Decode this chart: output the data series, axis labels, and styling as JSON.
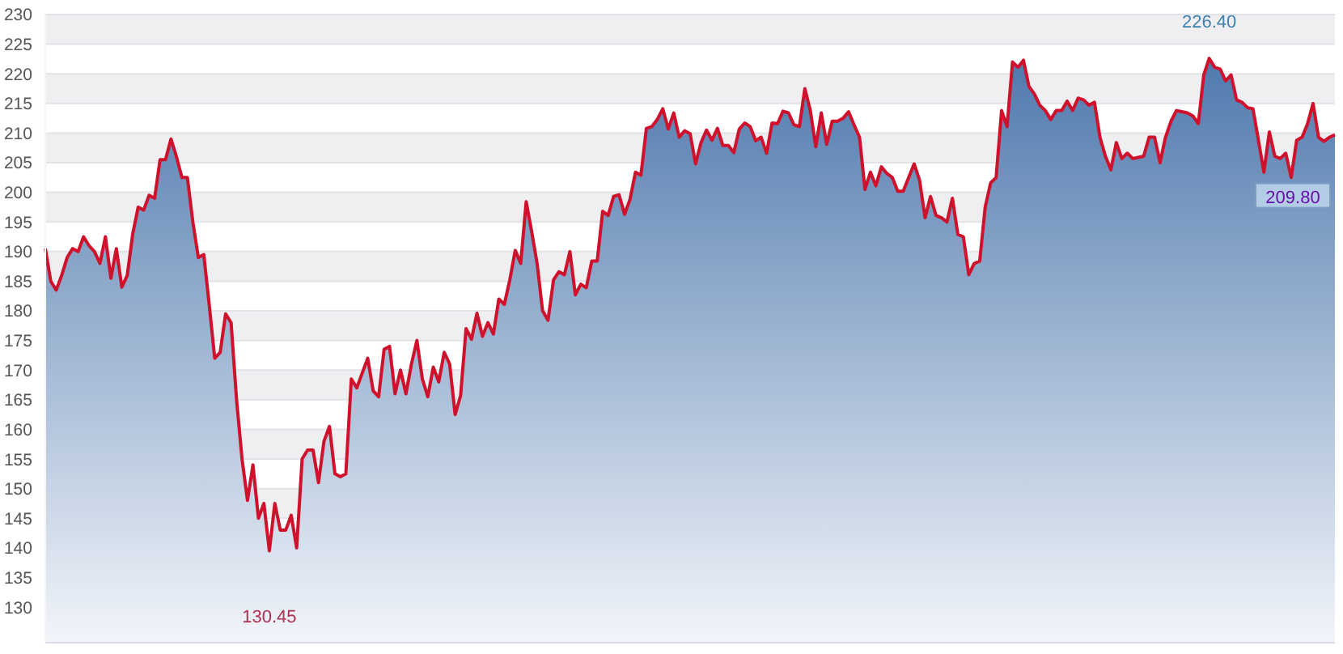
{
  "chart_data": {
    "type": "area",
    "categories": [
      null,
      null,
      null,
      null,
      null,
      null,
      null,
      null,
      null,
      null,
      null,
      null,
      null,
      null,
      null,
      null,
      null,
      null,
      null,
      null,
      null,
      null,
      null,
      null,
      null,
      null,
      null,
      null,
      null,
      null,
      null,
      null,
      null,
      null,
      null,
      null,
      null,
      null,
      null,
      null,
      null,
      null,
      null,
      null,
      null,
      null,
      null,
      null,
      null,
      null,
      null,
      null,
      null,
      null,
      null,
      null,
      null,
      null,
      null,
      null,
      null,
      null,
      null,
      null,
      null,
      null,
      null,
      null,
      null,
      null,
      null,
      null,
      null,
      null,
      null,
      null,
      null,
      null,
      null,
      null,
      null,
      null,
      null,
      null,
      null,
      null,
      null,
      null,
      null,
      null,
      null,
      null,
      null,
      null,
      null,
      null,
      null,
      null,
      null,
      null,
      null,
      null,
      null,
      null,
      null,
      null,
      null,
      null,
      null,
      null,
      null,
      null,
      null,
      null,
      null,
      null,
      null,
      null,
      null,
      null,
      null,
      null,
      null,
      null,
      null,
      null,
      null,
      null,
      null,
      null,
      null,
      null,
      null,
      null,
      null,
      null,
      null,
      null,
      null,
      null,
      null,
      null,
      null,
      null,
      null,
      null,
      null,
      null,
      null,
      null,
      null,
      null,
      null,
      null,
      null,
      null,
      null,
      null,
      null,
      null,
      null,
      null,
      null,
      null,
      null,
      null,
      null,
      null,
      null,
      null,
      null,
      null,
      null,
      null,
      null,
      null,
      null,
      null,
      null,
      null,
      null,
      null,
      null,
      null,
      null,
      null,
      null,
      null,
      null,
      null,
      null,
      null,
      null,
      null,
      null,
      null,
      null,
      null,
      null,
      null,
      null,
      null,
      null,
      null,
      null,
      null,
      null,
      null,
      null,
      null,
      null,
      null,
      null,
      null,
      null,
      null,
      null,
      null,
      null,
      null,
      null,
      null,
      null,
      null,
      null,
      null,
      null,
      null,
      null,
      null,
      null,
      null,
      null,
      null,
      null,
      null,
      null
    ],
    "series": [
      {
        "color": "#d0112b",
        "values": [
          190.5,
          185,
          183.5,
          186,
          189,
          190.5,
          190,
          192.5,
          191,
          190,
          188,
          192.5,
          185.5,
          190.5,
          184,
          186,
          193,
          197.5,
          197,
          199.5,
          199,
          205.5,
          205.5,
          209,
          206,
          202.5,
          202.5,
          195,
          189,
          189.5,
          181,
          172,
          173,
          179.5,
          178,
          165,
          155,
          148,
          154,
          145,
          147.5,
          139.5,
          147.5,
          143,
          143,
          145.5,
          140,
          155,
          156.5,
          156.5,
          151,
          158,
          160.5,
          152.5,
          152,
          152.5,
          168.5,
          167,
          169.5,
          172,
          166.5,
          165.5,
          173.5,
          174,
          166,
          170,
          166,
          171,
          175,
          168.5,
          165.5,
          170.5,
          168,
          173,
          171,
          162.5,
          165.7,
          177,
          175.2,
          179.6,
          175.7,
          178,
          176.1,
          182,
          181.1,
          185.2,
          190.2,
          188,
          198.4,
          193.4,
          188,
          180,
          178.4,
          185.2,
          186.6,
          186.1,
          190,
          182.7,
          184.5,
          183.9,
          188.4,
          188.4,
          196.8,
          196.1,
          199.3,
          199.6,
          196.3,
          198.8,
          203.4,
          202.9,
          210.8,
          211.1,
          212.3,
          214.1,
          210.7,
          213.4,
          209.3,
          210.4,
          209.9,
          204.8,
          208.4,
          210.5,
          208.8,
          210.8,
          207.9,
          207.9,
          206.7,
          210.7,
          211.7,
          211.1,
          208.7,
          209.3,
          206.6,
          211.7,
          211.6,
          213.7,
          213.4,
          211.4,
          211.1,
          217.5,
          213.8,
          207.7,
          213.4,
          208.1,
          212,
          212,
          212.5,
          213.6,
          211.4,
          209.3,
          200.5,
          203.4,
          201.1,
          204.3,
          203.2,
          202.5,
          200.2,
          200.2,
          202.5,
          204.8,
          202,
          195.7,
          199.3,
          196.1,
          195.7,
          195,
          199,
          192.9,
          192.5,
          186.1,
          188,
          188.4,
          197.5,
          201.6,
          202.5,
          213.8,
          211.1,
          222,
          221.1,
          222.3,
          217.9,
          216.6,
          214.7,
          213.8,
          212.3,
          213.8,
          213.8,
          215.4,
          213.8,
          215.9,
          215.6,
          214.7,
          215.2,
          209.3,
          206.1,
          203.8,
          208.4,
          205.7,
          206.6,
          205.7,
          205.9,
          206.1,
          209.3,
          209.3,
          205,
          209.3,
          212,
          213.8,
          213.6,
          213.4,
          212.9,
          211.6,
          219.8,
          222.6,
          221.1,
          220.8,
          218.8,
          219.8,
          215.6,
          215.2,
          214.3,
          214.1,
          208.8,
          203.4,
          210.2,
          206.1,
          205.7,
          206.6,
          202.5,
          208.8,
          209.3,
          211.6,
          215,
          209.3,
          208.6,
          209.3,
          209.7
        ]
      }
    ],
    "ylim": [
      124,
      230
    ],
    "yticks": [
      130,
      135,
      140,
      145,
      150,
      155,
      160,
      165,
      170,
      175,
      180,
      185,
      190,
      195,
      200,
      205,
      210,
      215,
      220,
      225,
      230
    ],
    "grid": "y",
    "tick_labels": "y",
    "annotations": [
      "226.40",
      "130.45",
      "209.80"
    ]
  }
}
